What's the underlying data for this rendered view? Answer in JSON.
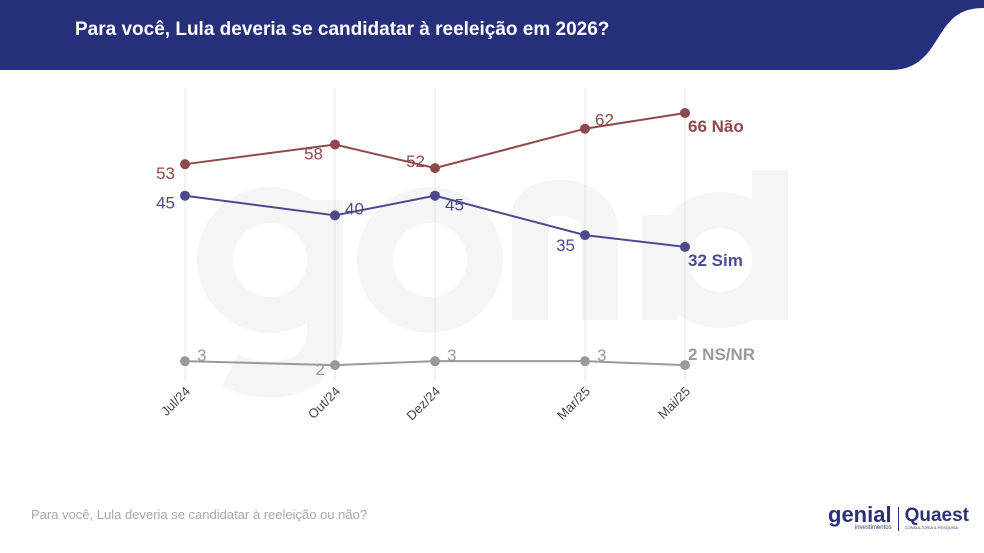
{
  "header": {
    "title": "Para você, Lula deveria se candidatar à reeleição em 2026?",
    "color": "#26307a"
  },
  "footnote": "Para você, Lula deveria se candidatar à reeleição ou não?",
  "logos": {
    "genial": "genial",
    "genial_sub": "investimentos",
    "quaest": "Quaest",
    "quaest_sub": "CONSULTORIA & PESQUISA",
    "watermark": "genial investimentos"
  },
  "chart_data": {
    "type": "line",
    "categories": [
      "Jul/24",
      "Out/24",
      "Dez/24",
      "Mar/25",
      "Mai/25"
    ],
    "ylim": [
      0,
      72
    ],
    "grid": "vertical",
    "series": [
      {
        "name": "Não",
        "color": "#8e4a4a",
        "values": [
          53,
          58,
          52,
          62,
          66
        ],
        "end_label": "66 Não"
      },
      {
        "name": "Sim",
        "color": "#4b4a8c",
        "values": [
          45,
          40,
          45,
          35,
          32
        ],
        "end_label": "32 Sim"
      },
      {
        "name": "NS/NR",
        "color": "#9a9a9a",
        "values": [
          3,
          2,
          3,
          3,
          2
        ],
        "end_label": "2 NS/NR"
      }
    ]
  }
}
